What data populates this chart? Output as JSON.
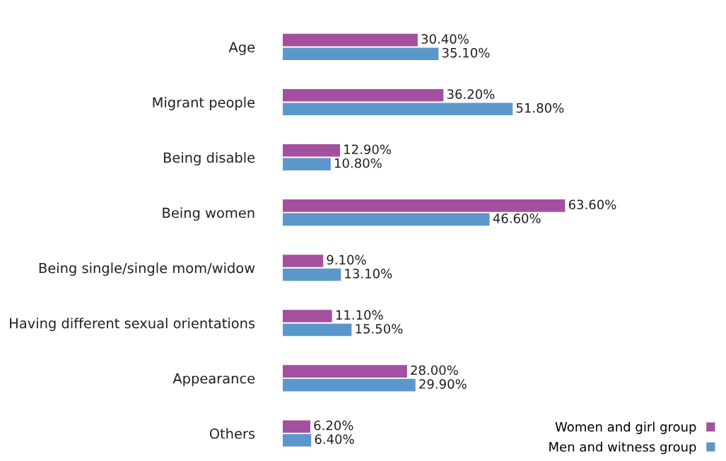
{
  "chart_data": {
    "type": "bar",
    "orientation": "horizontal",
    "categories": [
      "Age",
      "Migrant people",
      "Being disable",
      "Being women",
      "Being single/single mom/widow",
      "Having different sexual orientations",
      "Appearance",
      "Others"
    ],
    "series": [
      {
        "name": "Women and girl group",
        "color": "#a5509f",
        "values": [
          30.4,
          36.2,
          12.9,
          63.6,
          9.1,
          11.1,
          28.0,
          6.2
        ],
        "value_labels": [
          "30.40%",
          "36.20%",
          "12.90%",
          "63.60%",
          "9.10%",
          "11.10%",
          "28.00%",
          "6.20%"
        ]
      },
      {
        "name": "Men and witness group",
        "color": "#5b97cb",
        "values": [
          35.1,
          51.8,
          10.8,
          46.6,
          13.1,
          15.5,
          29.9,
          6.4
        ],
        "value_labels": [
          "35.10%",
          "51.80%",
          "10.80%",
          "46.60%",
          "13.10%",
          "15.50%",
          "29.90%",
          "6.40%"
        ]
      }
    ],
    "legend": "bottom right",
    "grid": false,
    "tick_labels": "y"
  }
}
